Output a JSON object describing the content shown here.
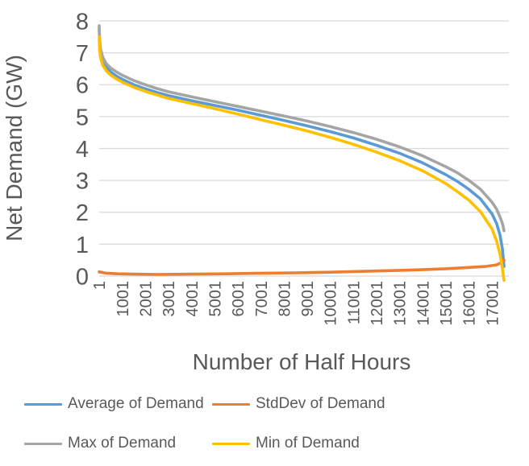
{
  "chart_data": {
    "type": "line",
    "title": "",
    "xlabel": "Number of Half Hours",
    "ylabel": "Net Demand (GW)",
    "xlim": [
      1,
      17520
    ],
    "ylim": [
      0,
      8
    ],
    "y_ticks": [
      0,
      1,
      2,
      3,
      4,
      5,
      6,
      7,
      8
    ],
    "x_tick_labels": [
      "1",
      "1001",
      "2001",
      "3001",
      "4001",
      "5001",
      "6001",
      "7001",
      "8001",
      "9001",
      "10001",
      "11001",
      "12001",
      "13001",
      "14001",
      "15001",
      "16001",
      "17001"
    ],
    "x_tick_values": [
      1,
      1001,
      2001,
      3001,
      4001,
      5001,
      6001,
      7001,
      8001,
      9001,
      10001,
      11001,
      12001,
      13001,
      14001,
      15001,
      16001,
      17001
    ],
    "grid": "horizontal",
    "gridline_color": "#D9D9D9",
    "text_color": "#595959",
    "legend_position": "bottom",
    "series": [
      {
        "name": "Average of Demand",
        "color": "#5B9BD5",
        "points": [
          [
            1,
            7.75
          ],
          [
            20,
            7.3
          ],
          [
            60,
            7.0
          ],
          [
            150,
            6.75
          ],
          [
            300,
            6.55
          ],
          [
            500,
            6.4
          ],
          [
            750,
            6.27
          ],
          [
            1000,
            6.17
          ],
          [
            1500,
            6.0
          ],
          [
            2000,
            5.87
          ],
          [
            2500,
            5.76
          ],
          [
            3000,
            5.66
          ],
          [
            4000,
            5.5
          ],
          [
            5000,
            5.35
          ],
          [
            6000,
            5.2
          ],
          [
            7000,
            5.04
          ],
          [
            8000,
            4.88
          ],
          [
            9000,
            4.71
          ],
          [
            10000,
            4.53
          ],
          [
            11000,
            4.33
          ],
          [
            12000,
            4.1
          ],
          [
            13000,
            3.85
          ],
          [
            14000,
            3.55
          ],
          [
            15000,
            3.18
          ],
          [
            15500,
            2.97
          ],
          [
            16000,
            2.72
          ],
          [
            16500,
            2.42
          ],
          [
            17000,
            1.95
          ],
          [
            17200,
            1.65
          ],
          [
            17350,
            1.28
          ],
          [
            17450,
            0.85
          ],
          [
            17500,
            0.5
          ],
          [
            17520,
            0.3
          ]
        ]
      },
      {
        "name": "StdDev of Demand",
        "color": "#ED7D31",
        "points": [
          [
            1,
            0.13
          ],
          [
            300,
            0.09
          ],
          [
            800,
            0.07
          ],
          [
            1500,
            0.06
          ],
          [
            2500,
            0.05
          ],
          [
            4000,
            0.06
          ],
          [
            5500,
            0.07
          ],
          [
            7000,
            0.09
          ],
          [
            8500,
            0.1
          ],
          [
            10000,
            0.12
          ],
          [
            11500,
            0.15
          ],
          [
            13000,
            0.18
          ],
          [
            14000,
            0.2
          ],
          [
            15000,
            0.23
          ],
          [
            16000,
            0.27
          ],
          [
            16700,
            0.3
          ],
          [
            17200,
            0.35
          ],
          [
            17400,
            0.42
          ],
          [
            17520,
            0.5
          ]
        ]
      },
      {
        "name": "Max of Demand",
        "color": "#A5A5A5",
        "points": [
          [
            1,
            7.85
          ],
          [
            20,
            7.42
          ],
          [
            60,
            7.12
          ],
          [
            150,
            6.87
          ],
          [
            300,
            6.67
          ],
          [
            500,
            6.52
          ],
          [
            750,
            6.4
          ],
          [
            1000,
            6.3
          ],
          [
            1500,
            6.13
          ],
          [
            2000,
            6.0
          ],
          [
            2500,
            5.88
          ],
          [
            3000,
            5.78
          ],
          [
            4000,
            5.62
          ],
          [
            5000,
            5.47
          ],
          [
            6000,
            5.32
          ],
          [
            7000,
            5.17
          ],
          [
            8000,
            5.02
          ],
          [
            9000,
            4.86
          ],
          [
            10000,
            4.69
          ],
          [
            11000,
            4.5
          ],
          [
            12000,
            4.29
          ],
          [
            13000,
            4.05
          ],
          [
            14000,
            3.77
          ],
          [
            15000,
            3.43
          ],
          [
            15500,
            3.24
          ],
          [
            16000,
            3.0
          ],
          [
            16500,
            2.72
          ],
          [
            17000,
            2.32
          ],
          [
            17200,
            2.1
          ],
          [
            17350,
            1.85
          ],
          [
            17450,
            1.65
          ],
          [
            17500,
            1.5
          ],
          [
            17520,
            1.42
          ]
        ]
      },
      {
        "name": "Min of Demand",
        "color": "#FFC000",
        "points": [
          [
            1,
            7.5
          ],
          [
            20,
            7.1
          ],
          [
            60,
            6.85
          ],
          [
            150,
            6.62
          ],
          [
            300,
            6.44
          ],
          [
            500,
            6.3
          ],
          [
            750,
            6.18
          ],
          [
            1000,
            6.08
          ],
          [
            1500,
            5.92
          ],
          [
            2000,
            5.79
          ],
          [
            2500,
            5.68
          ],
          [
            3000,
            5.57
          ],
          [
            4000,
            5.41
          ],
          [
            5000,
            5.25
          ],
          [
            6000,
            5.08
          ],
          [
            7000,
            4.9
          ],
          [
            8000,
            4.73
          ],
          [
            9000,
            4.55
          ],
          [
            10000,
            4.35
          ],
          [
            11000,
            4.13
          ],
          [
            12000,
            3.89
          ],
          [
            13000,
            3.62
          ],
          [
            14000,
            3.3
          ],
          [
            15000,
            2.9
          ],
          [
            15500,
            2.65
          ],
          [
            16000,
            2.38
          ],
          [
            16500,
            2.02
          ],
          [
            17000,
            1.48
          ],
          [
            17200,
            1.1
          ],
          [
            17350,
            0.68
          ],
          [
            17450,
            0.25
          ],
          [
            17500,
            -0.02
          ],
          [
            17520,
            -0.13
          ]
        ]
      }
    ]
  }
}
